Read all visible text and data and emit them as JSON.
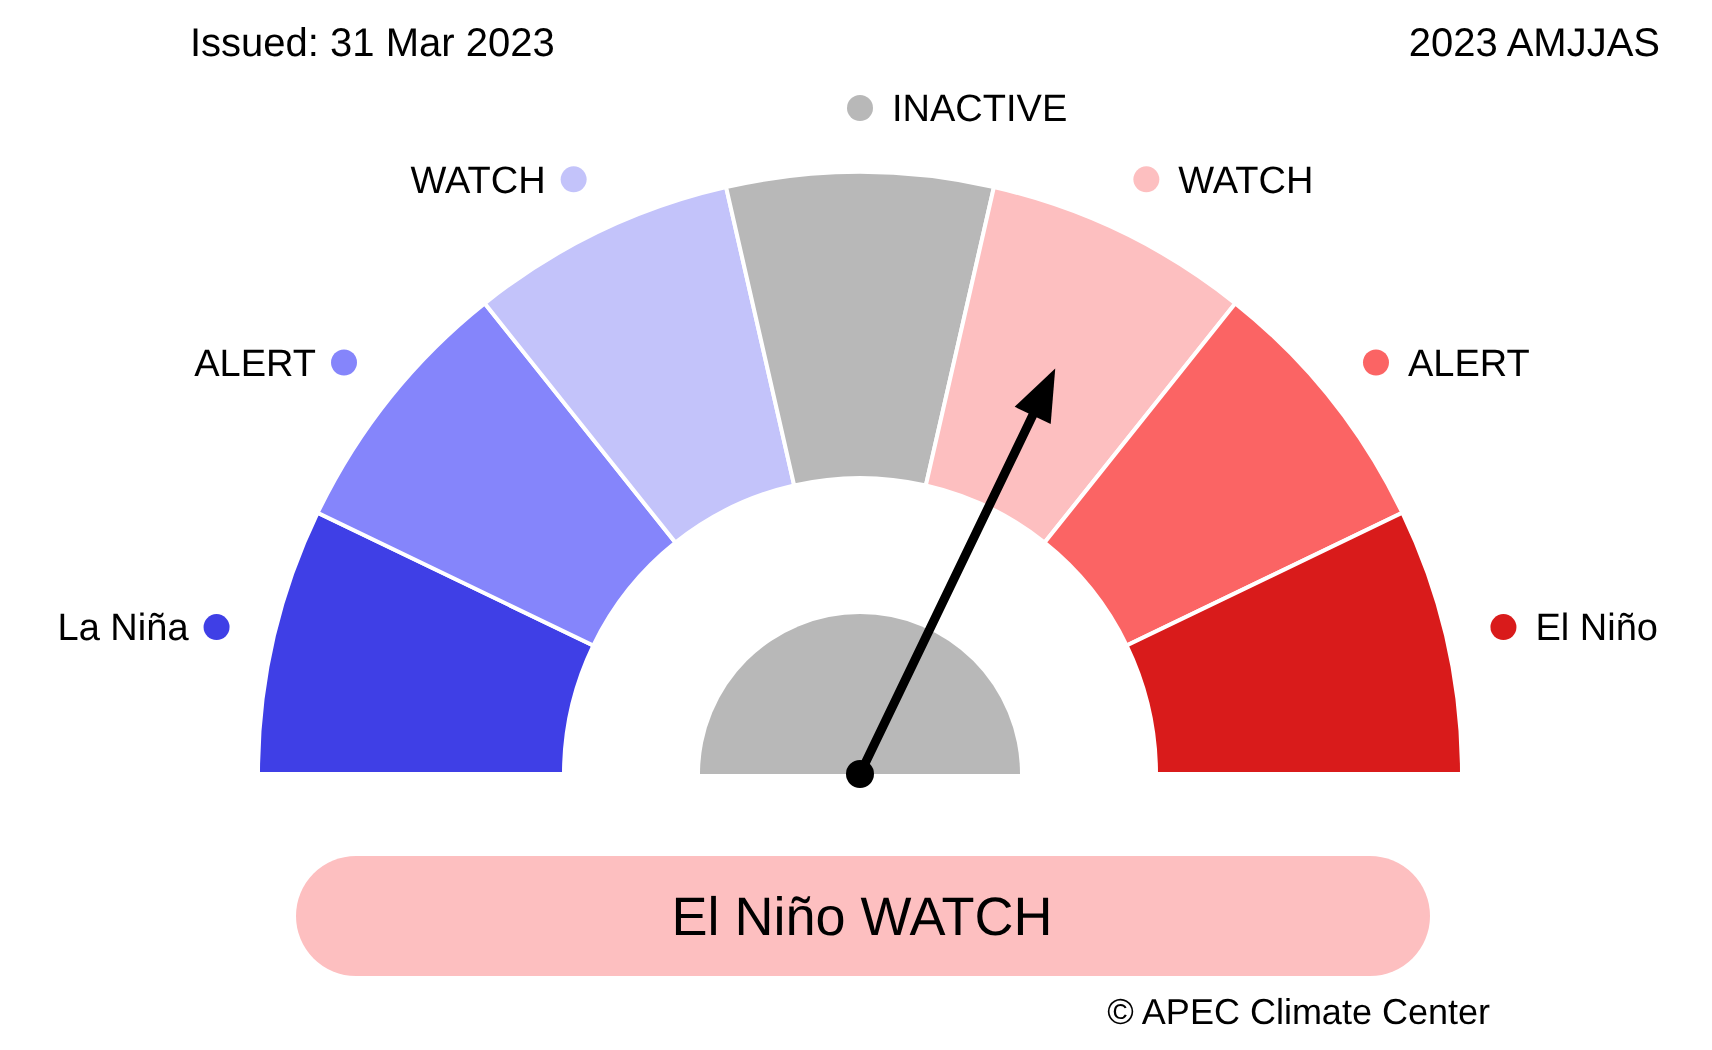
{
  "chart_data": {
    "type": "donut",
    "title": "Issued: 31 Mar 2023",
    "subtitle": "2023 AMJJAS",
    "categories": [
      "La Niña",
      "ALERT",
      "WATCH",
      "INACTIVE",
      "WATCH",
      "ALERT",
      "El Niño"
    ],
    "values": [
      14.29,
      14.28,
      14.29,
      14.28,
      14.29,
      14.28,
      14.29
    ],
    "colors": [
      "#3f3fe6",
      "#8585fb",
      "#c3c3fa",
      "#b8b8b8",
      "#fdbfc0",
      "#fb6464",
      "#d91b1b"
    ],
    "needle": "WATCH",
    "legend": "top",
    "annotations": [
      "El Niño WATCH",
      "© APEC Climate Center"
    ]
  }
}
